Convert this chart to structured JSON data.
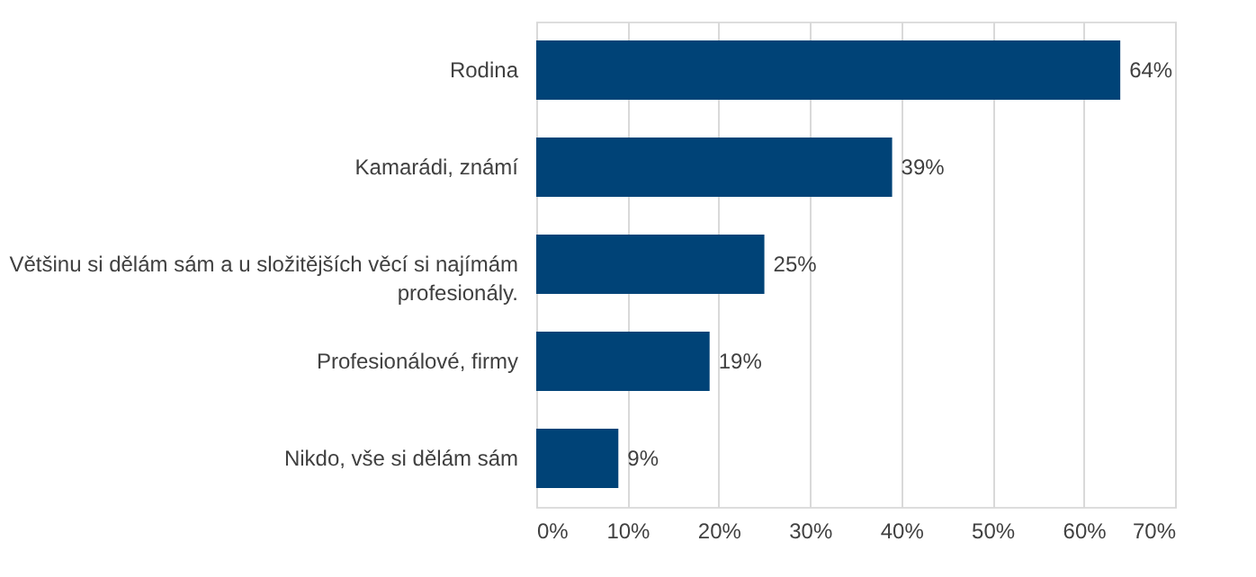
{
  "chart_data": {
    "type": "bar",
    "orientation": "horizontal",
    "categories": [
      "Rodina",
      "Kamarádi, známí",
      "Většinu si dělám sám a u složitějších věcí si najímám profesionály.",
      "Profesionálové, firmy",
      "Nikdo, vše si dělám sám"
    ],
    "values": [
      64,
      39,
      25,
      19,
      9
    ],
    "value_labels": [
      "64%",
      "39%",
      "25%",
      "19%",
      "9%"
    ],
    "color": "#004377",
    "xlim": [
      0,
      70
    ],
    "xticks": [
      {
        "value": 0,
        "label": "0%"
      },
      {
        "value": 10,
        "label": "10%"
      },
      {
        "value": 20,
        "label": "20%"
      },
      {
        "value": 30,
        "label": "30%"
      },
      {
        "value": 40,
        "label": "40%"
      },
      {
        "value": 50,
        "label": "50%"
      },
      {
        "value": 60,
        "label": "60%"
      },
      {
        "value": 70,
        "label": "70%"
      }
    ],
    "grid": "x"
  }
}
